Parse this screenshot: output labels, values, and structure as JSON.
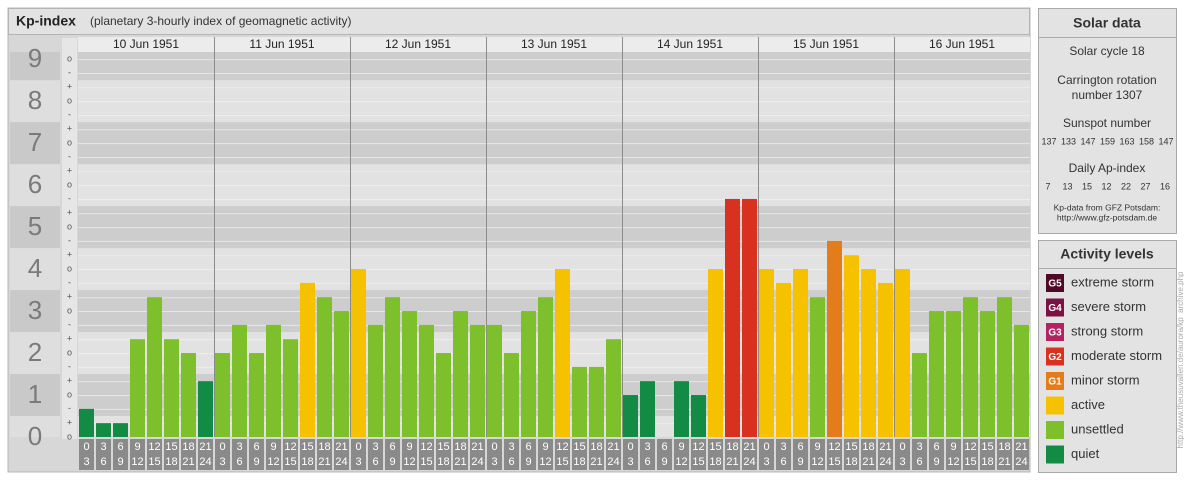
{
  "chart_data": {
    "type": "bar",
    "title": "Kp-index",
    "subtitle": "(planetary 3-hourly index of geomagnetic activity)",
    "ylim": [
      0,
      9.17
    ],
    "yticks": [
      0,
      1,
      2,
      3,
      4,
      5,
      6,
      7,
      8,
      9
    ],
    "ysubticks": [
      {
        "value": 0,
        "label": "o"
      },
      {
        "value": 0.33,
        "label": "+"
      },
      {
        "value": 0.67,
        "label": "-"
      },
      {
        "value": 1,
        "label": "o"
      },
      {
        "value": 1.33,
        "label": "+"
      },
      {
        "value": 1.67,
        "label": "-"
      },
      {
        "value": 2,
        "label": "o"
      },
      {
        "value": 2.33,
        "label": "+"
      },
      {
        "value": 2.67,
        "label": "-"
      },
      {
        "value": 3,
        "label": "o"
      },
      {
        "value": 3.33,
        "label": "+"
      },
      {
        "value": 3.67,
        "label": "-"
      },
      {
        "value": 4,
        "label": "o"
      },
      {
        "value": 4.33,
        "label": "+"
      },
      {
        "value": 4.67,
        "label": "-"
      },
      {
        "value": 5,
        "label": "o"
      },
      {
        "value": 5.33,
        "label": "+"
      },
      {
        "value": 5.67,
        "label": "-"
      },
      {
        "value": 6,
        "label": "o"
      },
      {
        "value": 6.33,
        "label": "+"
      },
      {
        "value": 6.67,
        "label": "-"
      },
      {
        "value": 7,
        "label": "o"
      },
      {
        "value": 7.33,
        "label": "+"
      },
      {
        "value": 7.67,
        "label": "-"
      },
      {
        "value": 8,
        "label": "o"
      },
      {
        "value": 8.33,
        "label": "+"
      },
      {
        "value": 8.67,
        "label": "-"
      },
      {
        "value": 9,
        "label": "o"
      }
    ],
    "grid": true,
    "time_slots": [
      {
        "from": "0",
        "to": "3"
      },
      {
        "from": "3",
        "to": "6"
      },
      {
        "from": "6",
        "to": "9"
      },
      {
        "from": "9",
        "to": "12"
      },
      {
        "from": "12",
        "to": "15"
      },
      {
        "from": "15",
        "to": "18"
      },
      {
        "from": "18",
        "to": "21"
      },
      {
        "from": "21",
        "to": "24"
      }
    ],
    "days": [
      {
        "date": "10 Jun 1951",
        "values": [
          0.67,
          0.33,
          0.33,
          2.33,
          3.33,
          2.33,
          2,
          1.33
        ],
        "colors": [
          "#128c44",
          "#128c44",
          "#128c44",
          "#7dc02c",
          "#7dc02c",
          "#7dc02c",
          "#7dc02c",
          "#128c44"
        ]
      },
      {
        "date": "11 Jun 1951",
        "values": [
          2,
          2.67,
          2,
          2.67,
          2.33,
          3.67,
          3.33,
          3
        ],
        "colors": [
          "#7dc02c",
          "#7dc02c",
          "#7dc02c",
          "#7dc02c",
          "#7dc02c",
          "#f6c200",
          "#7dc02c",
          "#7dc02c"
        ]
      },
      {
        "date": "12 Jun 1951",
        "values": [
          4,
          2.67,
          3.33,
          3,
          2.67,
          2,
          3,
          2.67
        ],
        "colors": [
          "#f6c200",
          "#7dc02c",
          "#7dc02c",
          "#7dc02c",
          "#7dc02c",
          "#7dc02c",
          "#7dc02c",
          "#7dc02c"
        ]
      },
      {
        "date": "13 Jun 1951",
        "values": [
          2.67,
          2,
          3,
          3.33,
          4,
          1.67,
          1.67,
          2.33
        ],
        "colors": [
          "#7dc02c",
          "#7dc02c",
          "#7dc02c",
          "#7dc02c",
          "#f6c200",
          "#7dc02c",
          "#7dc02c",
          "#7dc02c"
        ]
      },
      {
        "date": "14 Jun 1951",
        "values": [
          1,
          1.33,
          0,
          1.33,
          1,
          4,
          5.67,
          5.67
        ],
        "colors": [
          "#128c44",
          "#128c44",
          "#128c44",
          "#128c44",
          "#128c44",
          "#f6c200",
          "#d8311f",
          "#d8311f"
        ]
      },
      {
        "date": "15 Jun 1951",
        "values": [
          4,
          3.67,
          4,
          3.33,
          4.67,
          4.33,
          4,
          3.67
        ],
        "colors": [
          "#f6c200",
          "#f6c200",
          "#f6c200",
          "#7dc02c",
          "#e57c1b",
          "#f6c200",
          "#f6c200",
          "#f6c200"
        ]
      },
      {
        "date": "16 Jun 1951",
        "values": [
          4,
          2,
          3,
          3,
          3.33,
          3,
          3.33,
          2.67
        ],
        "colors": [
          "#f6c200",
          "#7dc02c",
          "#7dc02c",
          "#7dc02c",
          "#7dc02c",
          "#7dc02c",
          "#7dc02c",
          "#7dc02c"
        ]
      }
    ]
  },
  "solar_data": {
    "title": "Solar data",
    "solar_cycle": "Solar cycle 18",
    "carrington": [
      "Carrington rotation",
      "number 1307"
    ],
    "sunspot_title": "Sunspot number",
    "sunspot_numbers": [
      137,
      133,
      147,
      159,
      163,
      158,
      147
    ],
    "ap_title": "Daily Ap-index",
    "ap_values": [
      7,
      13,
      15,
      12,
      22,
      27,
      16
    ],
    "source": "Kp-data from GFZ Potsdam:",
    "source_url": "http://www.gfz-potsdam.de"
  },
  "activity_levels": {
    "title": "Activity levels",
    "items": [
      {
        "badge": "G5",
        "label": "extreme storm",
        "color": "#4e0a26"
      },
      {
        "badge": "G4",
        "label": "severe storm",
        "color": "#7a1244"
      },
      {
        "badge": "G3",
        "label": "strong storm",
        "color": "#b02460"
      },
      {
        "badge": "G2",
        "label": "moderate storm",
        "color": "#d8311f"
      },
      {
        "badge": "G1",
        "label": "minor storm",
        "color": "#e57c1b"
      },
      {
        "badge": null,
        "label": "active",
        "color": "#f6c200"
      },
      {
        "badge": null,
        "label": "unsettled",
        "color": "#7dc02c"
      },
      {
        "badge": null,
        "label": "quiet",
        "color": "#128c44"
      }
    ]
  },
  "side_url": "http://www.theusuvallen.de/aurora/kp_archive.php"
}
